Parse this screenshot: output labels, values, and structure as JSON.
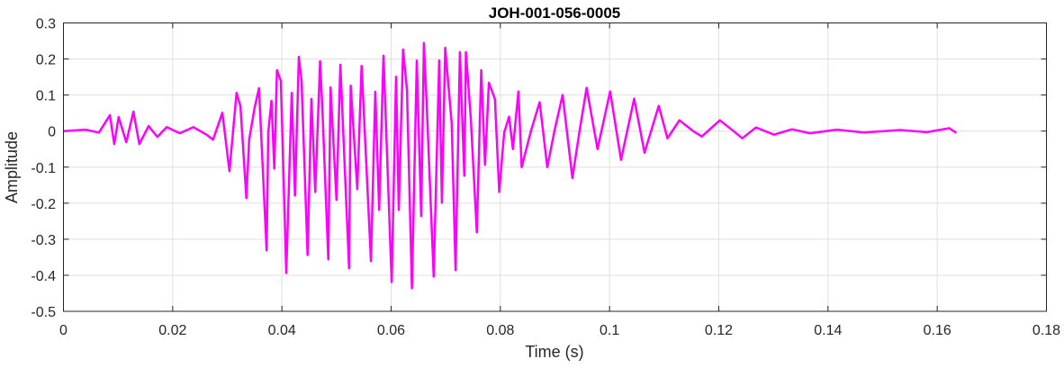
{
  "chart_data": {
    "type": "line",
    "title": "JOH-001-056-0005",
    "xlabel": "Time (s)",
    "ylabel": "Amplitude",
    "xlim": [
      0,
      0.18
    ],
    "ylim": [
      -0.5,
      0.3
    ],
    "xticks": [
      0,
      0.02,
      0.04,
      0.06,
      0.08,
      0.1,
      0.12,
      0.14,
      0.16,
      0.18
    ],
    "xtick_labels": [
      "0",
      "0.02",
      "0.04",
      "0.06",
      "0.08",
      "0.1",
      "0.12",
      "0.14",
      "0.16",
      "0.18"
    ],
    "yticks": [
      0.3,
      0.2,
      0.1,
      0,
      -0.1,
      -0.2,
      -0.3,
      -0.4,
      -0.5
    ],
    "ytick_labels": [
      "0.3",
      "0.2",
      "0.1",
      "0",
      "-0.1",
      "-0.2",
      "-0.3",
      "-0.4",
      "-0.5"
    ],
    "grid": true,
    "series": [
      {
        "name": "waveform",
        "color": "#FF00FF",
        "x": [
          0,
          0.004,
          0.0065,
          0.0085,
          0.0093,
          0.0101,
          0.0115,
          0.0128,
          0.0139,
          0.0156,
          0.0172,
          0.0189,
          0.0213,
          0.0238,
          0.0263,
          0.0274,
          0.0291,
          0.0304,
          0.0317,
          0.0324,
          0.0335,
          0.034,
          0.035,
          0.0358,
          0.0372,
          0.0375,
          0.0381,
          0.0386,
          0.0391,
          0.0398,
          0.0408,
          0.0418,
          0.0424,
          0.0431,
          0.0436,
          0.0447,
          0.0454,
          0.0461,
          0.047,
          0.0474,
          0.0485,
          0.0489,
          0.05,
          0.0507,
          0.0523,
          0.0526,
          0.0538,
          0.0546,
          0.0563,
          0.0571,
          0.0578,
          0.0586,
          0.0601,
          0.0609,
          0.0614,
          0.0622,
          0.0629,
          0.0638,
          0.0647,
          0.0655,
          0.066,
          0.0665,
          0.0678,
          0.0688,
          0.0693,
          0.0699,
          0.0711,
          0.0718,
          0.0726,
          0.0734,
          0.0737,
          0.0746,
          0.0757,
          0.0765,
          0.0772,
          0.0779,
          0.079,
          0.0798,
          0.0807,
          0.0816,
          0.0823,
          0.0833,
          0.0839,
          0.0856,
          0.0872,
          0.0886,
          0.0899,
          0.0914,
          0.0932,
          0.0945,
          0.0958,
          0.0978,
          0.1001,
          0.1021,
          0.1045,
          0.1064,
          0.109,
          0.1106,
          0.1128,
          0.1153,
          0.1169,
          0.1202,
          0.1227,
          0.1243,
          0.1268,
          0.1301,
          0.1334,
          0.1367,
          0.1416,
          0.1466,
          0.1532,
          0.1581,
          0.1622,
          0.1635
        ],
        "y": [
          0,
          0.004,
          -0.004,
          0.044,
          -0.036,
          0.039,
          -0.031,
          0.054,
          -0.036,
          0.014,
          -0.016,
          0.011,
          -0.006,
          0.011,
          -0.011,
          -0.024,
          0.051,
          -0.111,
          0.106,
          0.069,
          -0.186,
          -0.024,
          0.064,
          0.119,
          -0.331,
          -0.004,
          0.084,
          -0.104,
          0.169,
          0.139,
          -0.394,
          0.106,
          -0.179,
          0.206,
          0.139,
          -0.344,
          0.089,
          -0.169,
          0.194,
          0.064,
          -0.356,
          0.121,
          -0.191,
          0.184,
          -0.381,
          0.126,
          -0.161,
          0.181,
          -0.361,
          0.109,
          -0.219,
          0.209,
          -0.419,
          0.151,
          -0.219,
          0.226,
          0.114,
          -0.436,
          0.196,
          -0.236,
          0.244,
          0.081,
          -0.404,
          0.196,
          -0.199,
          0.231,
          0.021,
          -0.386,
          0.219,
          -0.124,
          0.219,
          0.031,
          -0.281,
          0.169,
          -0.094,
          0.134,
          0.089,
          -0.169,
          -0.004,
          0.04,
          -0.05,
          0.11,
          -0.1,
          0.0,
          0.08,
          -0.1,
          0.0,
          0.1,
          -0.13,
          0.0,
          0.12,
          -0.05,
          0.11,
          -0.08,
          0.09,
          -0.06,
          0.07,
          -0.02,
          0.03,
          0.0,
          -0.015,
          0.03,
          0.0,
          -0.02,
          0.01,
          -0.01,
          0.005,
          -0.006,
          0.004,
          -0.004,
          0.003,
          -0.003,
          0.008,
          -0.005
        ]
      }
    ]
  }
}
